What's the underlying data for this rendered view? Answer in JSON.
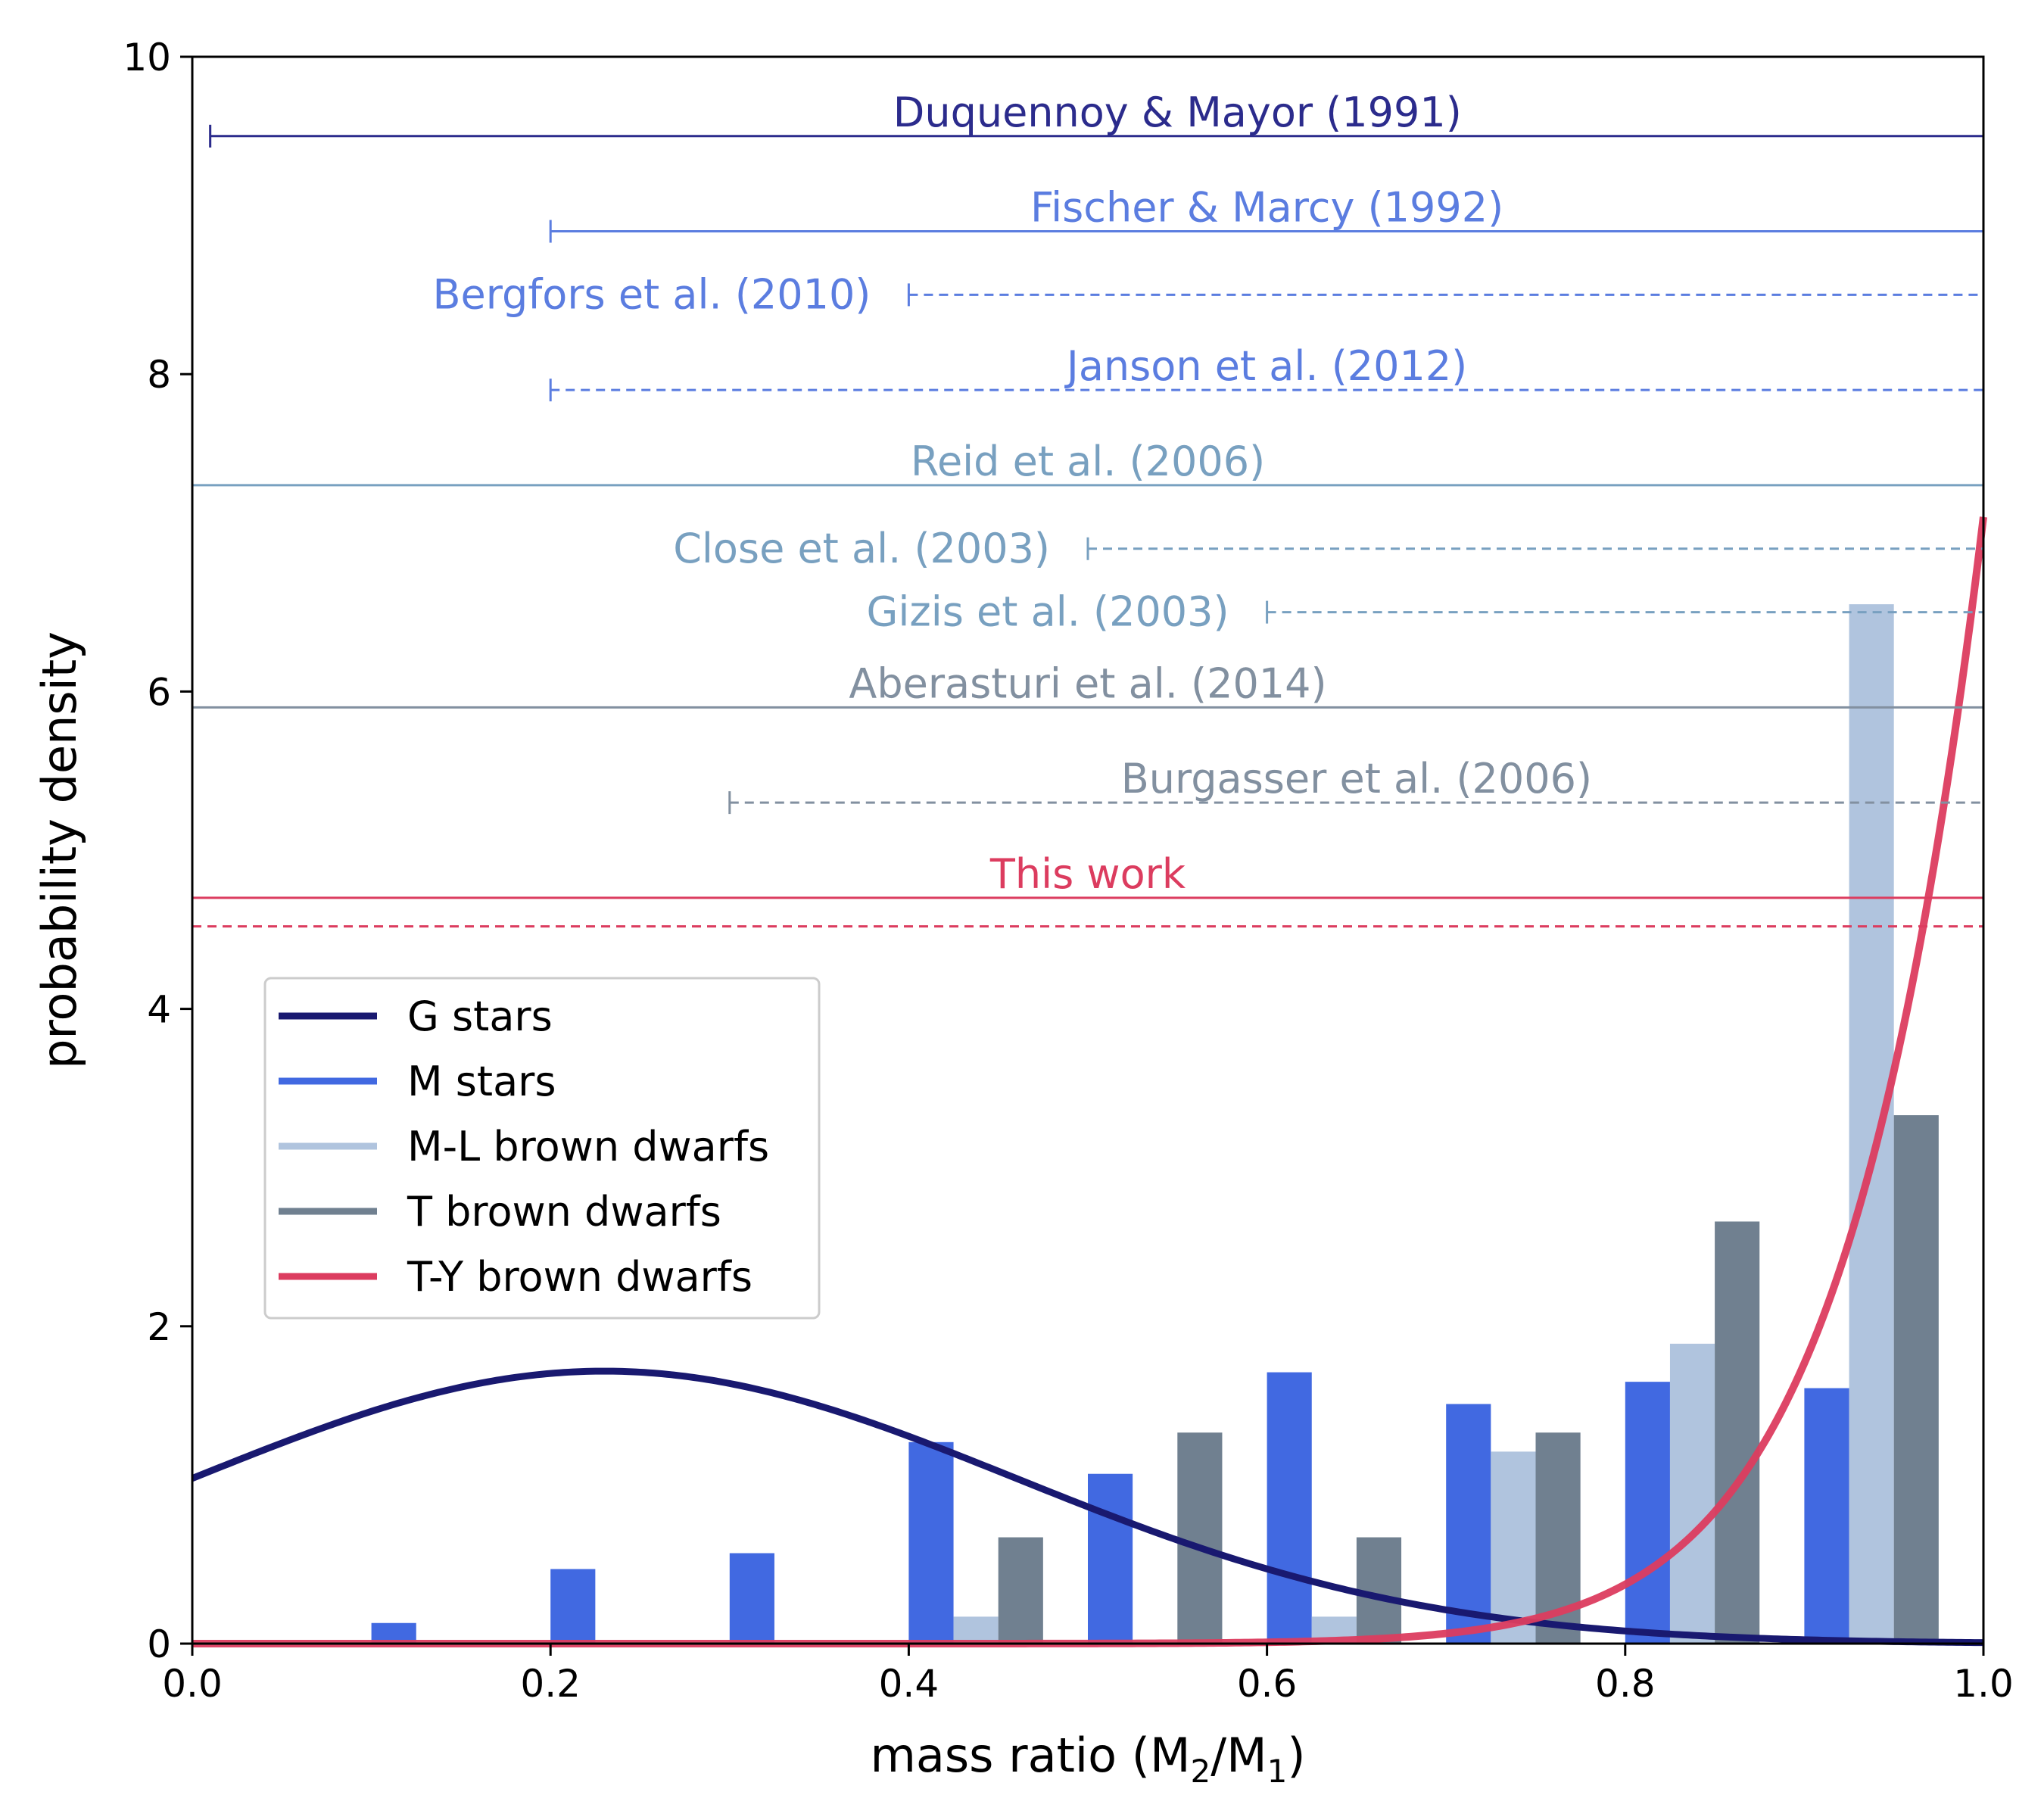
{
  "chart_data": {
    "type": "bar",
    "title": "",
    "xlabel": "mass ratio (M",
    "xlabel_sub1": "2",
    "xlabel_mid": "/M",
    "xlabel_sub2": "1",
    "xlabel_end": ")",
    "ylabel": "probability density",
    "xlim": [
      0.0,
      1.0
    ],
    "ylim": [
      0,
      10
    ],
    "xticks": [
      "0.0",
      "0.2",
      "0.4",
      "0.6",
      "0.8",
      "1.0"
    ],
    "yticks": [
      "0",
      "2",
      "4",
      "6",
      "8",
      "10"
    ],
    "grid": false,
    "legend_position": "lower-left",
    "bin_edges": [
      0.0,
      0.1,
      0.2,
      0.3,
      0.4,
      0.5,
      0.6,
      0.7,
      0.8,
      0.9,
      1.0
    ],
    "histograms": [
      {
        "name": "M stars",
        "color": "#4169e1",
        "offset": 0,
        "values": [
          0,
          0.13,
          0.47,
          0.57,
          1.27,
          1.07,
          1.71,
          1.51,
          1.65,
          1.61
        ]
      },
      {
        "name": "M-L brown dwarfs",
        "color": "#b0c4de",
        "offset": 1,
        "values": [
          0,
          0,
          0,
          0,
          0.17,
          0,
          0.17,
          1.21,
          1.89,
          6.55
        ]
      },
      {
        "name": "T brown dwarfs",
        "color": "#708090",
        "offset": 2,
        "values": [
          0,
          0,
          0,
          0,
          0.67,
          1.33,
          0.67,
          1.33,
          2.66,
          3.33
        ]
      }
    ],
    "curves": [
      {
        "name": "G stars",
        "color": "#191970",
        "kind": "gaussian",
        "mu": 0.23,
        "sigma": 0.23,
        "scale": 0.99
      },
      {
        "name": "T-Y brown dwarfs",
        "color": "#dc3c5f",
        "kind": "power",
        "gamma": 13.2,
        "peak": 7.1
      }
    ],
    "legend": [
      {
        "name": "G stars",
        "color": "#191970"
      },
      {
        "name": "M stars",
        "color": "#4169e1"
      },
      {
        "name": "M-L brown dwarfs",
        "color": "#b0c4de"
      },
      {
        "name": "T brown dwarfs",
        "color": "#708090"
      },
      {
        "name": "T-Y brown dwarfs",
        "color": "#dc3c5f"
      }
    ],
    "references": [
      {
        "label": "Duquennoy & Mayor (1991)",
        "color": "#2b2b8c",
        "y": 9.5,
        "x0": 0.01,
        "x1": 1.0,
        "style": "solid",
        "label_pos": "above",
        "label_x": 0.55
      },
      {
        "label": "Fischer & Marcy (1992)",
        "color": "#5b7de0",
        "y": 8.9,
        "x0": 0.2,
        "x1": 1.0,
        "style": "solid",
        "label_pos": "above",
        "label_x": 0.6
      },
      {
        "label": "Bergfors et al. (2010)",
        "color": "#5b7de0",
        "y": 8.5,
        "x0": 0.4,
        "x1": 1.0,
        "style": "dashed",
        "label_pos": "left"
      },
      {
        "label": "Janson et al. (2012)",
        "color": "#5b7de0",
        "y": 7.9,
        "x0": 0.2,
        "x1": 1.0,
        "style": "dashed",
        "label_pos": "above",
        "label_x": 0.6
      },
      {
        "label": "Reid et al. (2006)",
        "color": "#78a0c0",
        "y": 7.3,
        "x0": 0.0,
        "x1": 1.0,
        "style": "solid",
        "label_pos": "above",
        "label_x": 0.5
      },
      {
        "label": "Close et al. (2003)",
        "color": "#78a0c0",
        "y": 6.9,
        "x0": 0.5,
        "x1": 1.0,
        "style": "dashed",
        "label_pos": "left"
      },
      {
        "label": "Gizis et al. (2003)",
        "color": "#78a0c0",
        "y": 6.5,
        "x0": 0.6,
        "x1": 1.0,
        "style": "dashed",
        "label_pos": "left"
      },
      {
        "label": "Aberasturi et al. (2014)",
        "color": "#8290a0",
        "y": 5.9,
        "x0": 0.0,
        "x1": 1.0,
        "style": "solid",
        "label_pos": "above",
        "label_x": 0.5
      },
      {
        "label": "Burgasser et al. (2006)",
        "color": "#8290a0",
        "y": 5.3,
        "x0": 0.3,
        "x1": 1.0,
        "style": "dashed",
        "label_pos": "above",
        "label_x": 0.65
      },
      {
        "label": "This work",
        "color": "#dc3c5f",
        "y": 4.7,
        "x0": 0.0,
        "x1": 1.0,
        "style": "solid",
        "label_pos": "above",
        "label_x": 0.5
      },
      {
        "label": "",
        "color": "#dc3c5f",
        "y": 4.52,
        "x0": 0.0,
        "x1": 1.0,
        "style": "dashed",
        "label_pos": "none"
      }
    ]
  }
}
